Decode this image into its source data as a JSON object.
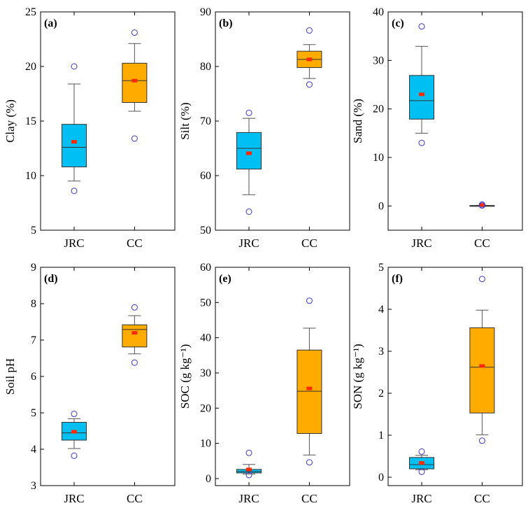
{
  "colors": {
    "jrc": "#00bff3",
    "cc": "#ffab00",
    "mean_marker": "#ff2a00",
    "outlier": "#3a3ad0",
    "axis": "#000000"
  },
  "chart_data": [
    {
      "type": "box",
      "panel_label": "(a)",
      "ylabel": "Clay (%)",
      "ylim": [
        5,
        25
      ],
      "yticks": [
        5,
        10,
        15,
        20,
        25
      ],
      "categories": [
        "JRC",
        "CC"
      ],
      "boxes": [
        {
          "category": "JRC",
          "whisker_low": 9.5,
          "q1": 10.8,
          "median": 12.6,
          "q3": 14.7,
          "whisker_high": 18.4,
          "mean": 13.1,
          "outliers": [
            8.6,
            20.0
          ]
        },
        {
          "category": "CC",
          "whisker_low": 15.9,
          "q1": 16.7,
          "median": 18.7,
          "q3": 20.3,
          "whisker_high": 22.1,
          "mean": 18.7,
          "outliers": [
            13.4,
            23.1
          ]
        }
      ]
    },
    {
      "type": "box",
      "panel_label": "(b)",
      "ylabel": "Silt (%)",
      "ylim": [
        50,
        90
      ],
      "yticks": [
        50,
        60,
        70,
        80,
        90
      ],
      "categories": [
        "JRC",
        "CC"
      ],
      "boxes": [
        {
          "category": "JRC",
          "whisker_low": 56.5,
          "q1": 61.2,
          "median": 65.0,
          "q3": 67.9,
          "whisker_high": 70.5,
          "mean": 64.1,
          "outliers": [
            53.4,
            71.5
          ]
        },
        {
          "category": "CC",
          "whisker_low": 77.8,
          "q1": 79.8,
          "median": 81.3,
          "q3": 82.8,
          "whisker_high": 84.0,
          "mean": 81.3,
          "outliers": [
            76.7,
            86.6
          ]
        }
      ]
    },
    {
      "type": "box",
      "panel_label": "(c)",
      "ylabel": "Sand (%)",
      "ylim": [
        -5,
        40
      ],
      "yticks": [
        0,
        10,
        20,
        30,
        40
      ],
      "categories": [
        "JRC",
        "CC"
      ],
      "boxes": [
        {
          "category": "JRC",
          "whisker_low": 15.0,
          "q1": 17.9,
          "median": 21.7,
          "q3": 26.9,
          "whisker_high": 32.9,
          "mean": 23.0,
          "outliers": [
            13.0,
            37.0
          ]
        },
        {
          "category": "CC",
          "whisker_low": 0.0,
          "q1": 0.0,
          "median": 0.0,
          "q3": 0.1,
          "whisker_high": 0.1,
          "mean": 0.2,
          "outliers": [
            0.1,
            0.3
          ]
        }
      ]
    },
    {
      "type": "box",
      "panel_label": "(d)",
      "ylabel": "Soil pH",
      "ylim": [
        3,
        9
      ],
      "yticks": [
        3,
        4,
        5,
        6,
        7,
        8,
        9
      ],
      "categories": [
        "JRC",
        "CC"
      ],
      "boxes": [
        {
          "category": "JRC",
          "whisker_low": 4.02,
          "q1": 4.25,
          "median": 4.45,
          "q3": 4.74,
          "whisker_high": 4.84,
          "mean": 4.48,
          "outliers": [
            3.82,
            4.97
          ]
        },
        {
          "category": "CC",
          "whisker_low": 6.62,
          "q1": 6.81,
          "median": 7.29,
          "q3": 7.42,
          "whisker_high": 7.67,
          "mean": 7.2,
          "outliers": [
            6.38,
            7.9
          ]
        }
      ]
    },
    {
      "type": "box",
      "panel_label": "(e)",
      "ylabel": "SOC (g kg⁻¹)",
      "ylim": [
        -2,
        60
      ],
      "yticks": [
        0,
        10,
        20,
        30,
        40,
        50,
        60
      ],
      "categories": [
        "JRC",
        "CC"
      ],
      "boxes": [
        {
          "category": "JRC",
          "whisker_low": 1.3,
          "q1": 1.6,
          "median": 2.0,
          "q3": 2.6,
          "whisker_high": 4.0,
          "mean": 2.6,
          "outliers": [
            1.0,
            7.3
          ]
        },
        {
          "category": "CC",
          "whisker_low": 6.7,
          "q1": 12.8,
          "median": 24.8,
          "q3": 36.5,
          "whisker_high": 42.7,
          "mean": 25.6,
          "outliers": [
            4.6,
            50.5
          ]
        }
      ]
    },
    {
      "type": "box",
      "panel_label": "(f)",
      "ylabel": "SON (g kg⁻¹)",
      "ylim": [
        -0.2,
        5
      ],
      "yticks": [
        0,
        1,
        2,
        3,
        4,
        5
      ],
      "categories": [
        "JRC",
        "CC"
      ],
      "boxes": [
        {
          "category": "JRC",
          "whisker_low": 0.18,
          "q1": 0.2,
          "median": 0.3,
          "q3": 0.47,
          "whisker_high": 0.52,
          "mean": 0.34,
          "outliers": [
            0.13,
            0.61
          ]
        },
        {
          "category": "CC",
          "whisker_low": 1.01,
          "q1": 1.53,
          "median": 2.62,
          "q3": 3.56,
          "whisker_high": 3.98,
          "mean": 2.65,
          "outliers": [
            0.87,
            4.72
          ]
        }
      ]
    }
  ]
}
